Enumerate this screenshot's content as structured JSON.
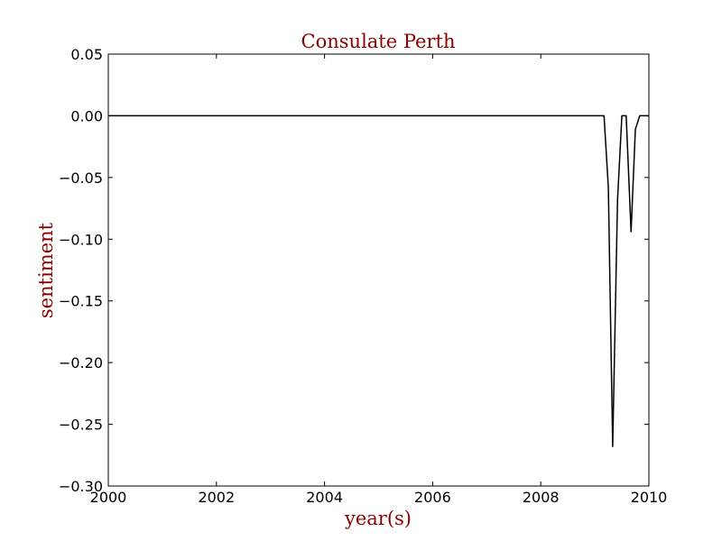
{
  "chart_data": {
    "type": "line",
    "title": "Consulate Perth",
    "xlabel": "year(s)",
    "ylabel": "sentiment",
    "xlim": [
      2000,
      2010
    ],
    "ylim": [
      -0.3,
      0.05
    ],
    "x_ticks": [
      "2000",
      "2002",
      "2004",
      "2006",
      "2008",
      "2010"
    ],
    "y_ticks": [
      "0.05",
      "0.00",
      "−0.05",
      "−0.10",
      "−0.15",
      "−0.20",
      "−0.25",
      "−0.30"
    ],
    "grid": false,
    "series": [
      {
        "color": "#000000",
        "x": [
          2000.0,
          2009.17,
          2009.25,
          2009.33,
          2009.42,
          2009.5,
          2009.58,
          2009.67,
          2009.75,
          2009.83,
          2009.92,
          2010.0
        ],
        "y": [
          0.0,
          0.0,
          -0.058,
          -0.268,
          -0.068,
          0.0,
          0.0,
          -0.094,
          -0.011,
          0.0,
          0.0,
          0.0
        ]
      }
    ]
  },
  "colors": {
    "label_color": "#8b0000",
    "line_color": "#000000"
  }
}
